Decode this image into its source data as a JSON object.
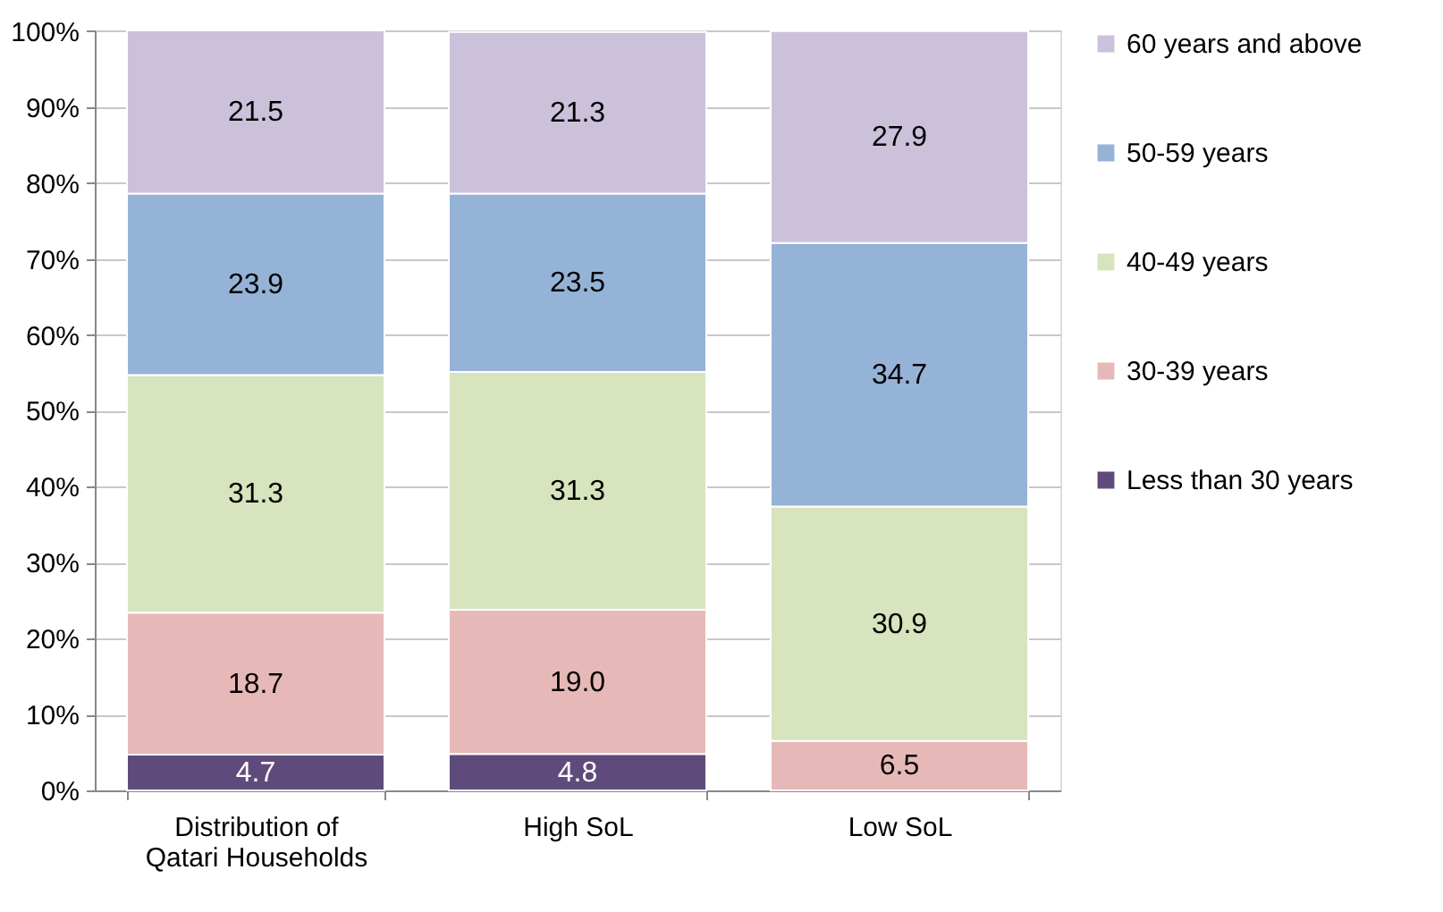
{
  "chart_data": {
    "type": "bar",
    "stacked": true,
    "categories": [
      "Distribution of Qatari Households",
      "High SoL",
      "Low SoL"
    ],
    "series": [
      {
        "name": "Less than 30 years",
        "color": "#5f4b7b",
        "values": [
          4.7,
          4.8,
          null
        ],
        "value_labels": [
          "4.7",
          "4.8",
          null
        ]
      },
      {
        "name": "30-39 years",
        "color": "#e6b9b8",
        "values": [
          18.7,
          19.0,
          6.5
        ],
        "value_labels": [
          "18.7",
          "19.0",
          "6.5"
        ]
      },
      {
        "name": "40-49 years",
        "color": "#d7e4bd",
        "values": [
          31.3,
          31.3,
          30.9
        ],
        "value_labels": [
          "31.3",
          "31.3",
          "30.9"
        ]
      },
      {
        "name": "50-59 years",
        "color": "#95b3d7",
        "values": [
          23.9,
          23.5,
          34.7
        ],
        "value_labels": [
          "23.9",
          "23.5",
          "34.7"
        ]
      },
      {
        "name": "60 years and above",
        "color": "#ccc1da",
        "values": [
          21.5,
          21.3,
          27.9
        ],
        "value_labels": [
          "21.5",
          "21.3",
          "27.9"
        ]
      }
    ],
    "ylim": [
      0,
      100.1
    ],
    "yticks": [
      {
        "value": 0,
        "label": "0%"
      },
      {
        "value": 10,
        "label": "10%"
      },
      {
        "value": 20,
        "label": "20%"
      },
      {
        "value": 30,
        "label": "30%"
      },
      {
        "value": 40,
        "label": "40%"
      },
      {
        "value": 50,
        "label": "50%"
      },
      {
        "value": 60,
        "label": "60%"
      },
      {
        "value": 70,
        "label": "70%"
      },
      {
        "value": 80,
        "label": "80%"
      },
      {
        "value": 90,
        "label": "90%"
      },
      {
        "value": 100,
        "label": "100%"
      }
    ],
    "grid": "y",
    "legend": "right"
  }
}
